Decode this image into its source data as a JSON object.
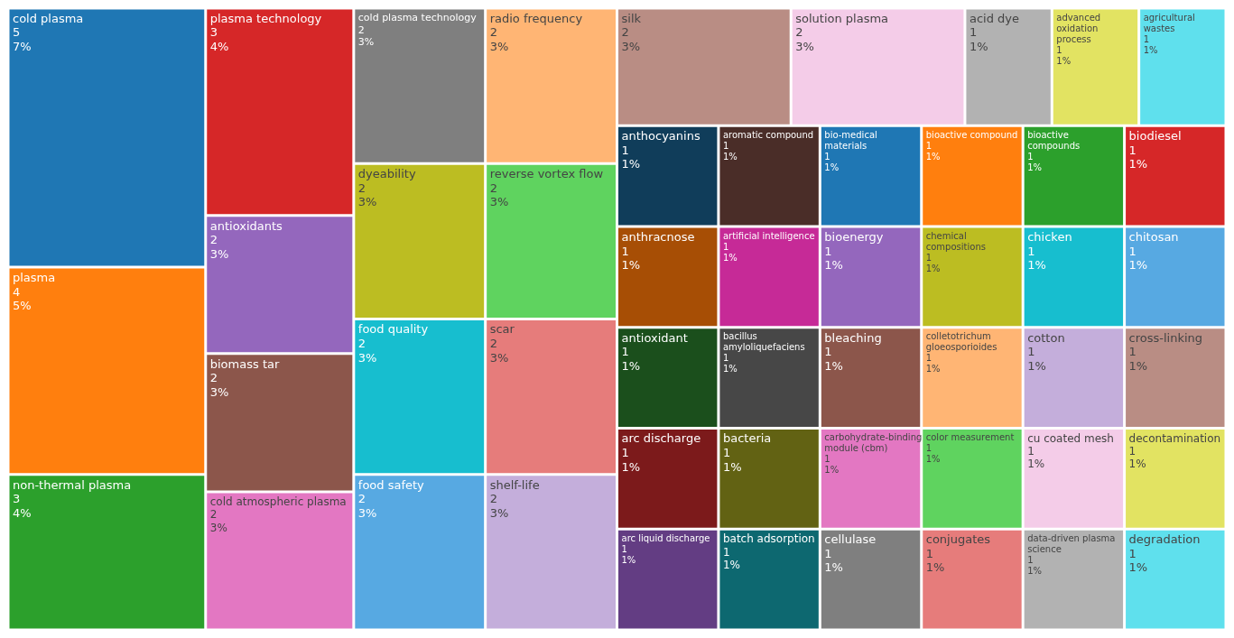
{
  "chart_data": {
    "type": "other",
    "categories": [
      "cold plasma",
      "plasma",
      "non-thermal plasma",
      "plasma technology",
      "antioxidants",
      "biomass tar",
      "cold atmospheric plasma",
      "cold plasma technology",
      "dyeability",
      "food quality",
      "food safety",
      "radio frequency",
      "reverse vortex flow",
      "scar",
      "shelf-life",
      "silk",
      "solution plasma",
      "acid dye",
      "advanced oxidation process",
      "agricultural wastes",
      "anthocyanins",
      "anthracnose",
      "antioxidant",
      "arc discharge",
      "arc liquid discharge",
      "aromatic compound",
      "artificial intelligence",
      "bacillus amyloliquefaciens",
      "bacteria",
      "batch adsorption",
      "bio-medical materials",
      "bioactive compound",
      "bioactive compounds",
      "biodiesel",
      "bioenergy",
      "bleaching",
      "carbohydrate-binding module (cbm)",
      "cellulase",
      "chemical compositions",
      "chicken",
      "chitosan",
      "colletotrichum gloeosporioides",
      "color measurement",
      "conjugates",
      "cotton",
      "cross-linking",
      "cu coated mesh",
      "data-driven plasma science",
      "decontamination",
      "degradation"
    ],
    "values": [
      5,
      4,
      3,
      3,
      2,
      2,
      2,
      2,
      2,
      2,
      2,
      2,
      2,
      2,
      2,
      2,
      2,
      1,
      1,
      1,
      1,
      1,
      1,
      1,
      1,
      1,
      1,
      1,
      1,
      1,
      1,
      1,
      1,
      1,
      1,
      1,
      1,
      1,
      1,
      1,
      1,
      1,
      1,
      1,
      1,
      1,
      1,
      1,
      1,
      1
    ],
    "value_labels": [
      "5\n7%",
      "4\n5%",
      "3\n4%",
      "3\n4%",
      "2\n3%",
      "2\n3%",
      "2\n3%",
      "2\n3%",
      "2\n3%",
      "2\n3%",
      "2\n3%",
      "2\n3%",
      "2\n3%",
      "2\n3%",
      "2\n3%",
      "2\n3%",
      "2\n3%",
      "1\n1%",
      "1\n1%",
      "1\n1%",
      "1\n1%",
      "1\n1%",
      "1\n1%",
      "1\n1%",
      "1\n1%",
      "1\n1%",
      "1\n1%",
      "1\n1%",
      "1\n1%",
      "1\n1%",
      "1\n1%",
      "1\n1%",
      "1\n1%",
      "1\n1%",
      "1\n1%",
      "1\n1%",
      "1\n1%",
      "1\n1%",
      "1\n1%",
      "1\n1%",
      "1\n1%",
      "1\n1%",
      "1\n1%",
      "1\n1%",
      "1\n1%",
      "1\n1%",
      "1\n1%",
      "1\n1%",
      "1\n1%",
      "1\n1%"
    ],
    "colors": [
      "#1f77b4",
      "#ff7f0e",
      "#2ca02c",
      "#d62728",
      "#9467bd",
      "#8c564b",
      "#e377c2",
      "#7f7f7f",
      "#bcbd22",
      "#17becf",
      "#57a9e2",
      "#ffb574",
      "#5fd35f",
      "#e67c7b",
      "#c4aedb",
      "#b98d84",
      "#f4cce8",
      "#b2b2b2",
      "#e2e362",
      "#5fe0ed",
      "#103d5a",
      "#a74e05",
      "#1b4f1c",
      "#7c1a1b",
      "#633d83",
      "#4a2d28",
      "#c62a97",
      "#474747",
      "#626213",
      "#0d6870",
      "#1f77b4",
      "#ff7f0e",
      "#2ca02c",
      "#d62728",
      "#9467bd",
      "#8c564b",
      "#e377c2",
      "#7f7f7f",
      "#bcbd22",
      "#17becf",
      "#57a9e2",
      "#ffb574",
      "#5fd35f",
      "#e67c7b",
      "#c4aedb",
      "#b98d84",
      "#f4cce8",
      "#b2b2b2",
      "#e2e362",
      "#5fe0ed"
    ]
  }
}
